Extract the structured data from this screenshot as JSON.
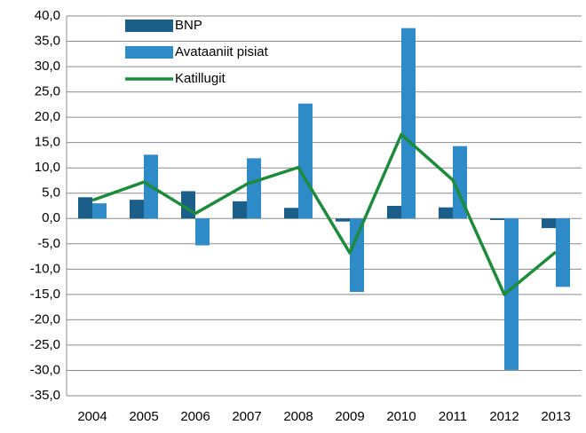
{
  "chart_data": {
    "type": "bar",
    "categories": [
      "2004",
      "2005",
      "2006",
      "2007",
      "2008",
      "2009",
      "2010",
      "2011",
      "2012",
      "2013"
    ],
    "series": [
      {
        "name": "BNP",
        "color": "#1b5e8a",
        "values": [
          4.2,
          3.7,
          5.4,
          3.4,
          2.1,
          -0.6,
          2.5,
          2.2,
          -0.3,
          -1.9
        ]
      },
      {
        "name": "Avataaniit pisiat",
        "color": "#2e8bc8",
        "values": [
          3.0,
          12.6,
          -5.3,
          11.9,
          22.7,
          -14.5,
          37.6,
          14.3,
          -29.9,
          -13.5
        ]
      },
      {
        "name": "Katillugit",
        "color": "#1e8b3c",
        "type": "line",
        "values": [
          3.6,
          7.2,
          1.0,
          6.8,
          10.1,
          -6.8,
          16.6,
          7.6,
          -15.0,
          -6.6
        ]
      }
    ],
    "ylim": [
      -35,
      40
    ],
    "yticks": [
      {
        "value": -35,
        "label": "-35,0"
      },
      {
        "value": -30,
        "label": "-30,0"
      },
      {
        "value": -25,
        "label": "-25,0"
      },
      {
        "value": -20,
        "label": "-20,0"
      },
      {
        "value": -15,
        "label": "-15,0"
      },
      {
        "value": -10,
        "label": "-10,0"
      },
      {
        "value": -5,
        "label": "-5,0"
      },
      {
        "value": 0,
        "label": "0,0"
      },
      {
        "value": 5,
        "label": "5,0"
      },
      {
        "value": 10,
        "label": "10,0"
      },
      {
        "value": 15,
        "label": "15,0"
      },
      {
        "value": 20,
        "label": "20,0"
      },
      {
        "value": 25,
        "label": "25,0"
      },
      {
        "value": 30,
        "label": "30,0"
      },
      {
        "value": 35,
        "label": "35,0"
      },
      {
        "value": 40,
        "label": "40,0"
      }
    ],
    "grid": true,
    "legend": "top-left"
  }
}
